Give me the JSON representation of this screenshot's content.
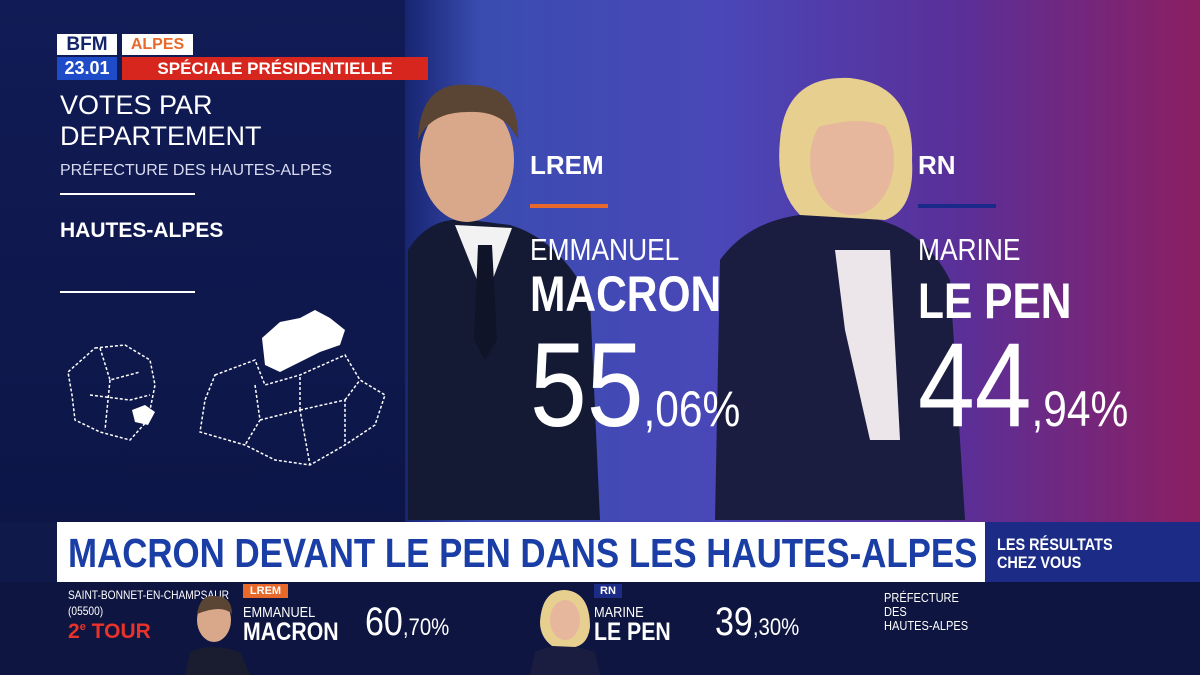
{
  "header": {
    "logo": "BFM",
    "channel": "ALPES",
    "time": "23.01",
    "show": "SPÉCIALE PRÉSIDENTIELLE"
  },
  "panel": {
    "title_line1": "VOTES PAR",
    "title_line2": "DEPARTEMENT",
    "source": "PRÉFECTURE DES HAUTES-ALPES",
    "department": "HAUTES-ALPES"
  },
  "candidates": [
    {
      "party": "LREM",
      "first_name": "EMMANUEL",
      "last_name": "MACRON",
      "pct_int": "55",
      "pct_dec": ",06%"
    },
    {
      "party": "RN",
      "first_name": "MARINE",
      "last_name": "LE PEN",
      "pct_int": "44",
      "pct_dec": ",94%"
    }
  ],
  "banner": {
    "headline": "MACRON DEVANT LE PEN DANS LES HAUTES-ALPES",
    "side_line1": "LES RÉSULTATS",
    "side_line2": "CHEZ VOUS"
  },
  "ticker": {
    "town": "SAINT-BONNET-EN-CHAMPSAUR",
    "postcode": "(05500)",
    "round": "2",
    "round_sup": "e",
    "round_word": "TOUR",
    "results": [
      {
        "party": "LREM",
        "first_name": "EMMANUEL",
        "last_name": "MACRON",
        "pct_int": "60",
        "pct_dec": ",70%"
      },
      {
        "party": "RN",
        "first_name": "MARINE",
        "last_name": "LE PEN",
        "pct_int": "39",
        "pct_dec": ",30%"
      }
    ],
    "source_lines": [
      "PRÉFECTURE",
      "DES",
      "HAUTES-ALPES"
    ]
  }
}
